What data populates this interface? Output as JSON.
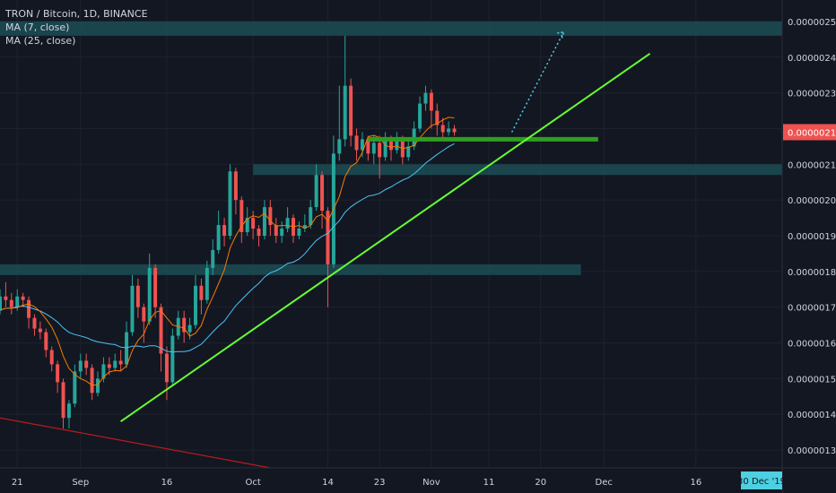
{
  "legend": {
    "symbol": "TRON / Bitcoin, 1D, BINANCE",
    "ma7": "MA (7, close)",
    "ma25": "MA (25, close)"
  },
  "chart_data": {
    "type": "candlestick",
    "ylim": [
      1.25e-06,
      2.56e-06
    ],
    "y_ticks": [
      "0.00000130",
      "0.00000140",
      "0.00000150",
      "0.00000160",
      "0.00000170",
      "0.00000180",
      "0.00000190",
      "0.00000200",
      "0.00000210",
      "0.00000220",
      "0.00000230",
      "0.00000240",
      "0.00000250"
    ],
    "y_tick_values": [
      1.3,
      1.4,
      1.5,
      1.6,
      1.7,
      1.8,
      1.9,
      2.0,
      2.1,
      2.2,
      2.3,
      2.4,
      2.5
    ],
    "x_ticks": [
      {
        "label": "21",
        "day": -11
      },
      {
        "label": "Sep",
        "day": 0
      },
      {
        "label": "16",
        "day": 15
      },
      {
        "label": "Oct",
        "day": 30
      },
      {
        "label": "14",
        "day": 43
      },
      {
        "label": "23",
        "day": 52
      },
      {
        "label": "Nov",
        "day": 61
      },
      {
        "label": "11",
        "day": 71
      },
      {
        "label": "20",
        "day": 80
      },
      {
        "label": "Dec",
        "day": 91
      },
      {
        "label": "16",
        "day": 107
      }
    ],
    "x_range_days": [
      -14,
      122
    ],
    "last_price": "0.00000219",
    "crosshair_date": "30 Dec '19",
    "price_unit_scale": 1e-06,
    "candles": [
      [
        1.7,
        1.72,
        1.74,
        1.67
      ],
      [
        1.72,
        1.67,
        1.75,
        1.66
      ],
      [
        1.67,
        1.65,
        1.68,
        1.63
      ],
      [
        1.65,
        1.69,
        1.71,
        1.64
      ],
      [
        1.69,
        1.73,
        1.75,
        1.68
      ],
      [
        1.73,
        1.72,
        1.77,
        1.7
      ],
      [
        1.72,
        1.7,
        1.74,
        1.68
      ],
      [
        1.7,
        1.73,
        1.75,
        1.69
      ],
      [
        1.73,
        1.72,
        1.74,
        1.7
      ],
      [
        1.72,
        1.67,
        1.73,
        1.64
      ],
      [
        1.67,
        1.64,
        1.68,
        1.62
      ],
      [
        1.64,
        1.63,
        1.66,
        1.61
      ],
      [
        1.63,
        1.58,
        1.64,
        1.56
      ],
      [
        1.58,
        1.54,
        1.59,
        1.52
      ],
      [
        1.54,
        1.49,
        1.55,
        1.46
      ],
      [
        1.49,
        1.39,
        1.5,
        1.36
      ],
      [
        1.39,
        1.43,
        1.44,
        1.36
      ],
      [
        1.43,
        1.52,
        1.54,
        1.42
      ],
      [
        1.52,
        1.55,
        1.57,
        1.5
      ],
      [
        1.55,
        1.53,
        1.57,
        1.51
      ],
      [
        1.53,
        1.46,
        1.54,
        1.44
      ],
      [
        1.46,
        1.5,
        1.52,
        1.45
      ],
      [
        1.5,
        1.54,
        1.56,
        1.49
      ],
      [
        1.54,
        1.53,
        1.56,
        1.51
      ],
      [
        1.53,
        1.55,
        1.57,
        1.52
      ],
      [
        1.55,
        1.54,
        1.58,
        1.52
      ],
      [
        1.54,
        1.63,
        1.66,
        1.53
      ],
      [
        1.63,
        1.76,
        1.79,
        1.62
      ],
      [
        1.76,
        1.7,
        1.78,
        1.67
      ],
      [
        1.7,
        1.66,
        1.71,
        1.6
      ],
      [
        1.66,
        1.81,
        1.85,
        1.65
      ],
      [
        1.81,
        1.7,
        1.82,
        1.67
      ],
      [
        1.7,
        1.57,
        1.71,
        1.52
      ],
      [
        1.57,
        1.49,
        1.59,
        1.44
      ],
      [
        1.49,
        1.62,
        1.64,
        1.48
      ],
      [
        1.62,
        1.67,
        1.69,
        1.61
      ],
      [
        1.67,
        1.63,
        1.69,
        1.6
      ],
      [
        1.63,
        1.65,
        1.67,
        1.61
      ],
      [
        1.65,
        1.76,
        1.79,
        1.64
      ],
      [
        1.76,
        1.72,
        1.78,
        1.68
      ],
      [
        1.72,
        1.81,
        1.83,
        1.71
      ],
      [
        1.81,
        1.86,
        1.89,
        1.79
      ],
      [
        1.86,
        1.93,
        1.97,
        1.85
      ],
      [
        1.93,
        1.9,
        1.95,
        1.87
      ],
      [
        1.9,
        2.08,
        2.1,
        1.89
      ],
      [
        2.08,
        2.0,
        2.09,
        1.96
      ],
      [
        2.0,
        1.91,
        2.01,
        1.88
      ],
      [
        1.91,
        1.95,
        1.98,
        1.9
      ],
      [
        1.95,
        1.92,
        1.97,
        1.89
      ],
      [
        1.92,
        1.9,
        1.93,
        1.87
      ],
      [
        1.9,
        1.98,
        2.0,
        1.89
      ],
      [
        1.98,
        1.93,
        2.0,
        1.9
      ],
      [
        1.93,
        1.9,
        1.95,
        1.88
      ],
      [
        1.9,
        1.92,
        1.94,
        1.88
      ],
      [
        1.92,
        1.95,
        1.98,
        1.91
      ],
      [
        1.95,
        1.9,
        1.96,
        1.88
      ],
      [
        1.9,
        1.92,
        1.94,
        1.89
      ],
      [
        1.92,
        1.93,
        1.96,
        1.91
      ],
      [
        1.93,
        1.98,
        2.0,
        1.92
      ],
      [
        1.98,
        2.07,
        2.1,
        1.97
      ],
      [
        2.07,
        1.97,
        2.08,
        1.92
      ],
      [
        1.97,
        1.82,
        1.98,
        1.7
      ],
      [
        1.82,
        2.13,
        2.18,
        1.81
      ],
      [
        2.13,
        2.17,
        2.32,
        2.11
      ],
      [
        2.17,
        2.32,
        2.46,
        2.15
      ],
      [
        2.32,
        2.18,
        2.34,
        2.15
      ],
      [
        2.18,
        2.14,
        2.2,
        2.11
      ],
      [
        2.14,
        2.17,
        2.19,
        2.12
      ],
      [
        2.17,
        2.13,
        2.18,
        2.11
      ],
      [
        2.13,
        2.16,
        2.18,
        2.1
      ],
      [
        2.16,
        2.12,
        2.18,
        2.06
      ],
      [
        2.12,
        2.17,
        2.19,
        2.11
      ],
      [
        2.17,
        2.14,
        2.18,
        2.11
      ],
      [
        2.14,
        2.17,
        2.19,
        2.13
      ],
      [
        2.17,
        2.12,
        2.18,
        2.1
      ],
      [
        2.12,
        2.15,
        2.17,
        2.11
      ],
      [
        2.15,
        2.2,
        2.22,
        2.14
      ],
      [
        2.2,
        2.27,
        2.29,
        2.19
      ],
      [
        2.27,
        2.3,
        2.32,
        2.25
      ],
      [
        2.3,
        2.25,
        2.31,
        2.2
      ],
      [
        2.25,
        2.21,
        2.27,
        2.18
      ],
      [
        2.21,
        2.19,
        2.23,
        2.17
      ],
      [
        2.19,
        2.2,
        2.22,
        2.18
      ],
      [
        2.2,
        2.19,
        2.21,
        2.18
      ]
    ],
    "candle_start_day": -18,
    "zones": [
      {
        "top": 2.5,
        "bottom": 2.46,
        "x0_day": -14,
        "x1_day": 122
      },
      {
        "top": 2.1,
        "bottom": 2.07,
        "x0_day": 30,
        "x1_day": 122
      },
      {
        "top": 1.82,
        "bottom": 1.79,
        "x0_day": -14,
        "x1_day": 87
      }
    ],
    "green_level": {
      "value": 2.17,
      "x0_day": 50,
      "x1_day": 90
    },
    "trendline": {
      "x0_day": 7,
      "y0": 1.38,
      "x1_day": 99,
      "y1": 2.41
    },
    "projection": {
      "x0_day": 75,
      "y0": 2.19,
      "x1_day": 84,
      "y1": 2.47
    },
    "red_line": {
      "x0_day": -14,
      "y0": 1.39,
      "x1_day": 33,
      "y1": 1.25
    },
    "colors": {
      "up": "#26a69a",
      "down": "#ef5350",
      "ma7": "#f57c00",
      "ma25": "#4fc3f7",
      "zone": "#1c4d55",
      "trend": "#66ff33",
      "green_level": "#2e9e1e",
      "projection": "#4dd0e1",
      "red_line": "#b71c1c",
      "price_label": "#ef5350"
    }
  }
}
